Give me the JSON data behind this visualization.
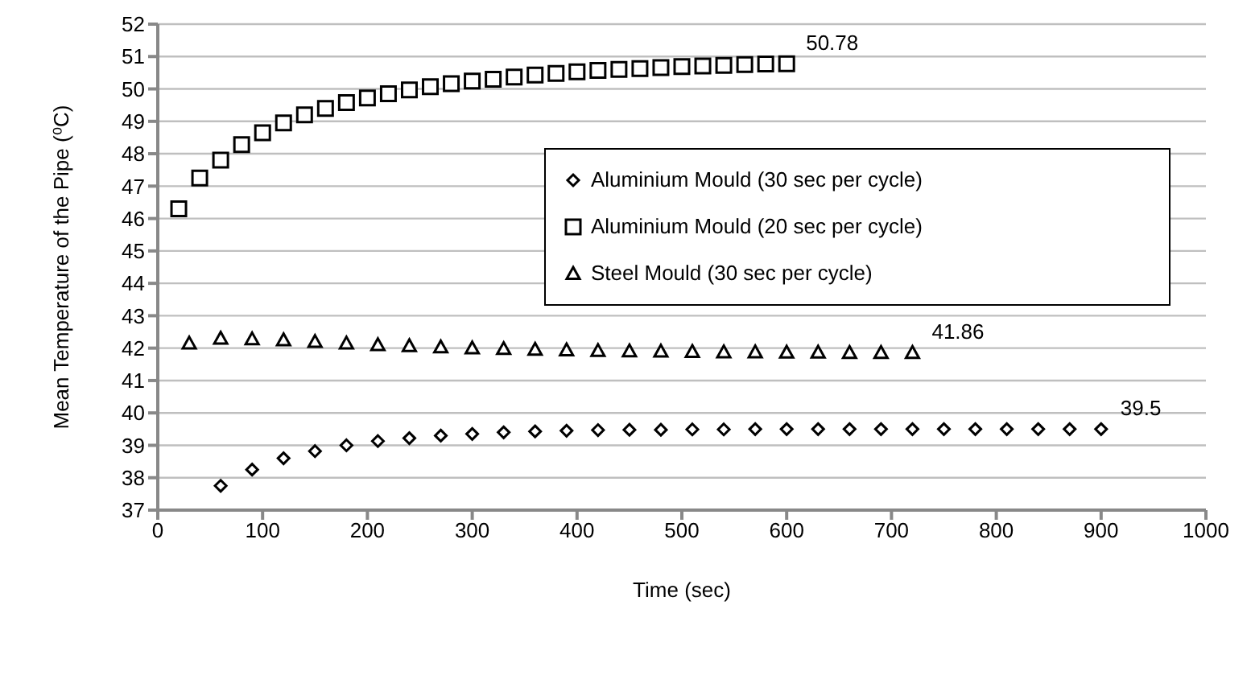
{
  "chart_data": {
    "type": "scatter",
    "xlabel": "Time (sec)",
    "ylabel": "Mean Temperature of the Pipe (⁰C)",
    "xlim": [
      0,
      1000
    ],
    "xticks": [
      0,
      100,
      200,
      300,
      400,
      500,
      600,
      700,
      800,
      900,
      1000
    ],
    "ylim": [
      37,
      52
    ],
    "yticks": [
      37,
      38,
      39,
      40,
      41,
      42,
      43,
      44,
      45,
      46,
      47,
      48,
      49,
      50,
      51,
      52
    ],
    "grid": "y",
    "legend": "right",
    "series": [
      {
        "name": "Aluminium Mould (30 sec per cycle)",
        "color": "#000000",
        "marker": "diamond",
        "x": [
          60,
          90,
          120,
          150,
          180,
          210,
          240,
          270,
          300,
          330,
          360,
          390,
          420,
          450,
          480,
          510,
          540,
          570,
          600,
          630,
          660,
          690,
          720,
          750,
          780,
          810,
          840,
          870,
          900
        ],
        "values": [
          37.75,
          38.25,
          38.6,
          38.82,
          39.0,
          39.13,
          39.22,
          39.3,
          39.35,
          39.4,
          39.43,
          39.45,
          39.47,
          39.48,
          39.48,
          39.49,
          39.49,
          39.5,
          39.5,
          39.5,
          39.5,
          39.5,
          39.5,
          39.5,
          39.5,
          39.5,
          39.5,
          39.5,
          39.5
        ],
        "value_labels": [
          null,
          null,
          null,
          null,
          null,
          null,
          null,
          null,
          null,
          null,
          null,
          null,
          null,
          null,
          null,
          null,
          null,
          null,
          null,
          null,
          null,
          null,
          null,
          null,
          null,
          null,
          null,
          null,
          "39.5"
        ]
      },
      {
        "name": "Aluminium Mould (20 sec per cycle)",
        "color": "#000000",
        "marker": "square",
        "x": [
          20,
          40,
          60,
          80,
          100,
          120,
          140,
          160,
          180,
          200,
          220,
          240,
          260,
          280,
          300,
          320,
          340,
          360,
          380,
          400,
          420,
          440,
          460,
          480,
          500,
          520,
          540,
          560,
          580,
          600
        ],
        "values": [
          46.3,
          47.25,
          47.8,
          48.28,
          48.65,
          48.95,
          49.2,
          49.4,
          49.58,
          49.72,
          49.85,
          49.97,
          50.07,
          50.16,
          50.24,
          50.3,
          50.37,
          50.43,
          50.48,
          50.53,
          50.57,
          50.6,
          50.63,
          50.66,
          50.69,
          50.71,
          50.73,
          50.75,
          50.77,
          50.78
        ],
        "value_labels": [
          null,
          null,
          null,
          null,
          null,
          null,
          null,
          null,
          null,
          null,
          null,
          null,
          null,
          null,
          null,
          null,
          null,
          null,
          null,
          null,
          null,
          null,
          null,
          null,
          null,
          null,
          null,
          null,
          null,
          "50.78"
        ]
      },
      {
        "name": "Steel Mould (30 sec per cycle)",
        "color": "#000000",
        "marker": "triangle",
        "x": [
          30,
          60,
          90,
          120,
          150,
          180,
          210,
          240,
          270,
          300,
          330,
          360,
          390,
          420,
          450,
          480,
          510,
          540,
          570,
          600,
          630,
          660,
          690,
          720
        ],
        "values": [
          42.15,
          42.3,
          42.28,
          42.25,
          42.2,
          42.15,
          42.1,
          42.07,
          42.03,
          42.0,
          41.98,
          41.96,
          41.94,
          41.92,
          41.91,
          41.9,
          41.89,
          41.88,
          41.88,
          41.87,
          41.87,
          41.86,
          41.86,
          41.86
        ],
        "value_labels": [
          null,
          null,
          null,
          null,
          null,
          null,
          null,
          null,
          null,
          null,
          null,
          null,
          null,
          null,
          null,
          null,
          null,
          null,
          null,
          null,
          null,
          null,
          null,
          "41.86"
        ]
      }
    ]
  }
}
